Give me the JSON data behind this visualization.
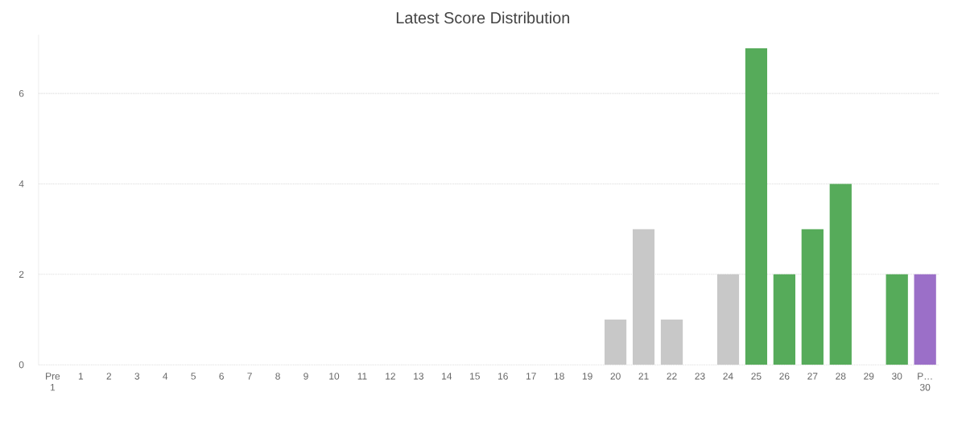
{
  "chart_data": {
    "type": "bar",
    "title": "Latest Score Distribution",
    "categories": [
      "Pre 1",
      "1",
      "2",
      "3",
      "4",
      "5",
      "6",
      "7",
      "8",
      "9",
      "10",
      "11",
      "12",
      "13",
      "14",
      "15",
      "16",
      "17",
      "18",
      "19",
      "20",
      "21",
      "22",
      "23",
      "24",
      "25",
      "26",
      "27",
      "28",
      "29",
      "30",
      "P… 30"
    ],
    "values": [
      0,
      0,
      0,
      0,
      0,
      0,
      0,
      0,
      0,
      0,
      0,
      0,
      0,
      0,
      0,
      0,
      0,
      0,
      0,
      0,
      1,
      3,
      1,
      0,
      2,
      7,
      2,
      3,
      4,
      0,
      2,
      2
    ],
    "colors": [
      "#c8c8c8",
      "#c8c8c8",
      "#c8c8c8",
      "#c8c8c8",
      "#c8c8c8",
      "#c8c8c8",
      "#c8c8c8",
      "#c8c8c8",
      "#c8c8c8",
      "#c8c8c8",
      "#c8c8c8",
      "#c8c8c8",
      "#c8c8c8",
      "#c8c8c8",
      "#c8c8c8",
      "#c8c8c8",
      "#c8c8c8",
      "#c8c8c8",
      "#c8c8c8",
      "#c8c8c8",
      "#c8c8c8",
      "#c8c8c8",
      "#c8c8c8",
      "#c8c8c8",
      "#c8c8c8",
      "#56ab5a",
      "#56ab5a",
      "#56ab5a",
      "#56ab5a",
      "#56ab5a",
      "#56ab5a",
      "#9b6fc8"
    ],
    "ylim": [
      0,
      7.3
    ],
    "yticks": [
      0,
      2,
      4,
      6
    ],
    "grid": "y"
  }
}
